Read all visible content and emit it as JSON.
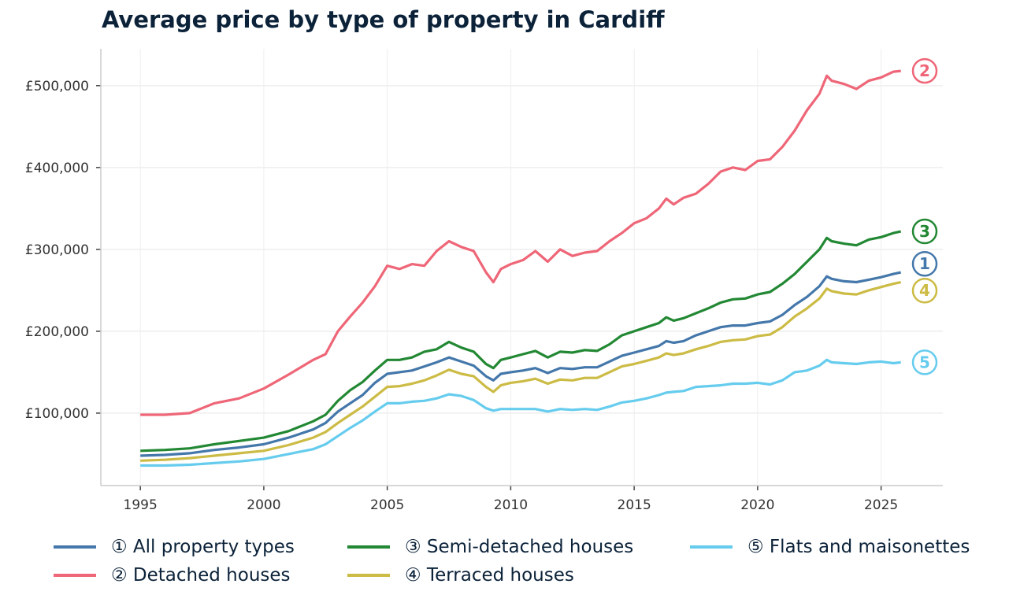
{
  "chart_data": {
    "type": "line",
    "title": "Average price by type of property in Cardiff",
    "xlabel": "",
    "ylabel": "",
    "xlim": [
      1993.4,
      2027.5
    ],
    "ylim": [
      11500,
      545000
    ],
    "grid": true,
    "legend_position": "bottom",
    "x_ticks": [
      1995,
      2000,
      2005,
      2010,
      2015,
      2020,
      2025
    ],
    "x_tick_labels": [
      "1995",
      "2000",
      "2005",
      "2010",
      "2015",
      "2020",
      "2025"
    ],
    "y_ticks": [
      100000,
      200000,
      300000,
      400000,
      500000
    ],
    "y_tick_labels": [
      "£100,000",
      "£200,000",
      "£300,000",
      "£400,000",
      "£500,000"
    ],
    "x": [
      1995,
      1996,
      1997,
      1998,
      1999,
      2000,
      2001,
      2002,
      2002.5,
      2003,
      2003.5,
      2004,
      2004.5,
      2005,
      2005.5,
      2006,
      2006.5,
      2007,
      2007.5,
      2008,
      2008.5,
      2009,
      2009.3,
      2009.6,
      2010,
      2010.5,
      2011,
      2011.5,
      2012,
      2012.5,
      2013,
      2013.5,
      2014,
      2014.5,
      2015,
      2015.5,
      2016,
      2016.3,
      2016.6,
      2017,
      2017.5,
      2018,
      2018.5,
      2019,
      2019.5,
      2020,
      2020.5,
      2021,
      2021.5,
      2022,
      2022.5,
      2022.8,
      2023,
      2023.5,
      2024,
      2024.5,
      2025,
      2025.5,
      2025.8
    ],
    "series": [
      {
        "name": "① All property types",
        "marker": "1",
        "color": "#4477aa",
        "values": [
          48000,
          49000,
          51000,
          55000,
          58000,
          62000,
          70000,
          80000,
          88000,
          102000,
          112000,
          122000,
          137000,
          148000,
          150000,
          152000,
          157000,
          162000,
          168000,
          163000,
          158000,
          145000,
          140000,
          148000,
          150000,
          152000,
          155000,
          149000,
          155000,
          154000,
          156000,
          156000,
          163000,
          170000,
          174000,
          178000,
          182000,
          188000,
          186000,
          188000,
          195000,
          200000,
          205000,
          207000,
          207000,
          210000,
          212000,
          220000,
          232000,
          242000,
          255000,
          267000,
          264000,
          261000,
          260000,
          263000,
          266000,
          270000,
          272000
        ]
      },
      {
        "name": "② Detached houses",
        "marker": "2",
        "color": "#ee6677",
        "values": [
          98000,
          98000,
          100000,
          112000,
          118000,
          130000,
          147000,
          165000,
          172000,
          200000,
          218000,
          235000,
          255000,
          280000,
          276000,
          282000,
          280000,
          298000,
          310000,
          303000,
          298000,
          272000,
          260000,
          276000,
          282000,
          287000,
          298000,
          285000,
          300000,
          292000,
          296000,
          298000,
          310000,
          320000,
          332000,
          338000,
          350000,
          362000,
          355000,
          363000,
          368000,
          380000,
          395000,
          400000,
          397000,
          408000,
          410000,
          425000,
          445000,
          470000,
          490000,
          512000,
          506000,
          502000,
          496000,
          506000,
          510000,
          517000,
          518000
        ]
      },
      {
        "name": "③ Semi-detached houses",
        "marker": "3",
        "color": "#228833",
        "values": [
          54000,
          55000,
          57000,
          62000,
          66000,
          70000,
          78000,
          90000,
          98000,
          115000,
          128000,
          138000,
          152000,
          165000,
          165000,
          168000,
          175000,
          178000,
          187000,
          180000,
          175000,
          160000,
          155000,
          165000,
          168000,
          172000,
          176000,
          168000,
          175000,
          174000,
          177000,
          176000,
          184000,
          195000,
          200000,
          205000,
          210000,
          217000,
          213000,
          216000,
          222000,
          228000,
          235000,
          239000,
          240000,
          245000,
          248000,
          258000,
          270000,
          285000,
          300000,
          314000,
          310000,
          307000,
          305000,
          312000,
          315000,
          320000,
          322000
        ]
      },
      {
        "name": "④ Terraced houses",
        "marker": "4",
        "color": "#ccbb44",
        "values": [
          42000,
          43000,
          45000,
          48000,
          51000,
          54000,
          61000,
          70000,
          77000,
          88000,
          98000,
          108000,
          120000,
          132000,
          133000,
          136000,
          140000,
          146000,
          153000,
          148000,
          145000,
          132000,
          126000,
          134000,
          137000,
          139000,
          142000,
          136000,
          141000,
          140000,
          143000,
          143000,
          150000,
          157000,
          160000,
          164000,
          168000,
          173000,
          171000,
          173000,
          178000,
          182000,
          187000,
          189000,
          190000,
          194000,
          196000,
          205000,
          218000,
          228000,
          240000,
          252000,
          249000,
          246000,
          245000,
          250000,
          254000,
          258000,
          260000
        ]
      },
      {
        "name": "⑤ Flats and maisonettes",
        "marker": "5",
        "color": "#66ccee",
        "values": [
          36000,
          36000,
          37000,
          39000,
          41000,
          44000,
          50000,
          56000,
          62000,
          72000,
          82000,
          91000,
          102000,
          112000,
          112000,
          114000,
          115000,
          118000,
          123000,
          121000,
          116000,
          106000,
          103000,
          105000,
          105000,
          105000,
          105000,
          102000,
          105000,
          104000,
          105000,
          104000,
          108000,
          113000,
          115000,
          118000,
          122000,
          125000,
          126000,
          127000,
          132000,
          133000,
          134000,
          136000,
          136000,
          137000,
          135000,
          140000,
          150000,
          152000,
          158000,
          165000,
          162000,
          161000,
          160000,
          162000,
          163000,
          161000,
          162000
        ]
      }
    ]
  }
}
